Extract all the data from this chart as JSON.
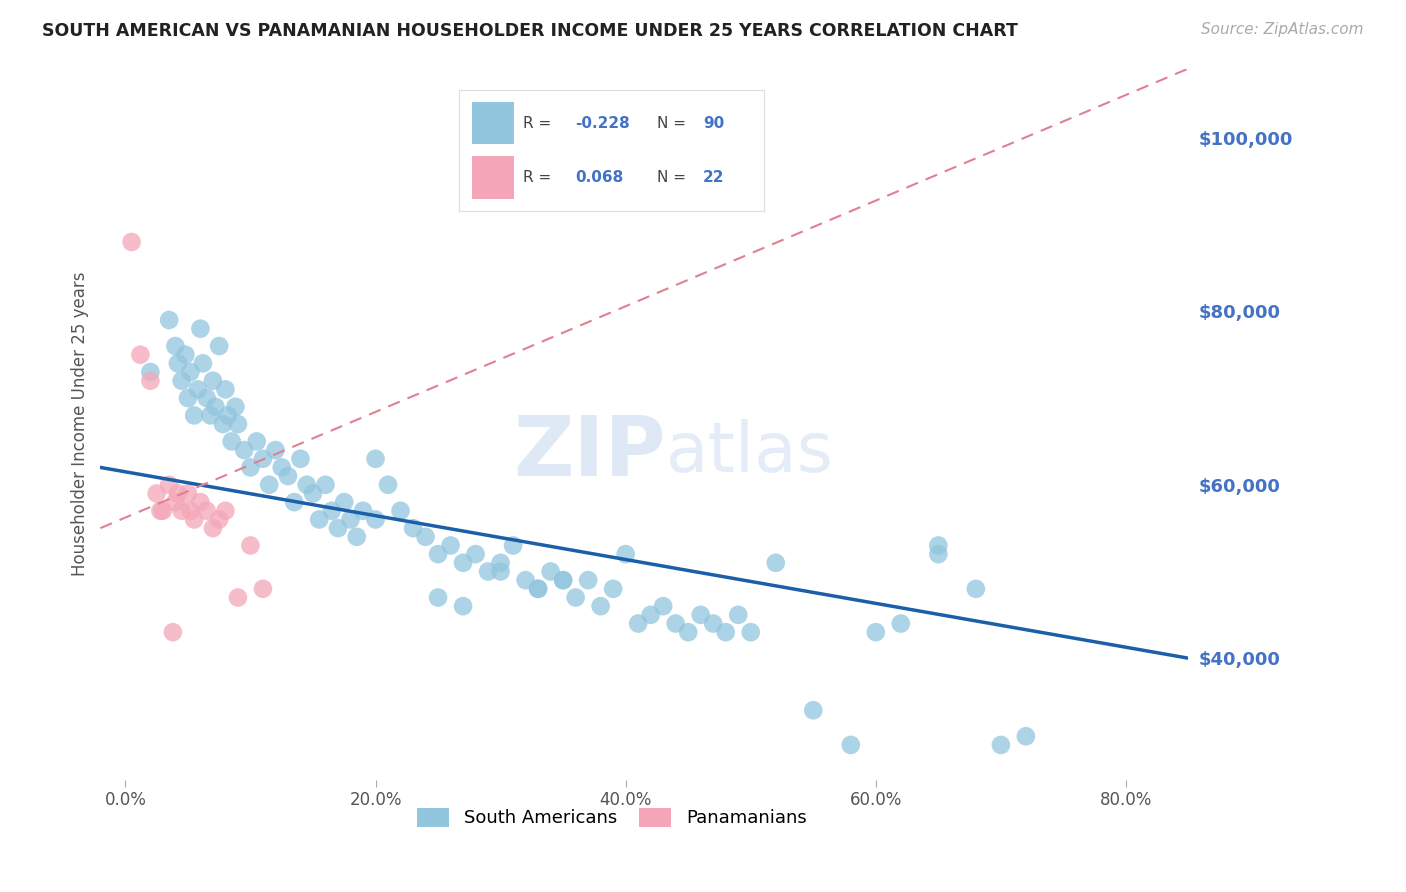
{
  "title": "SOUTH AMERICAN VS PANAMANIAN HOUSEHOLDER INCOME UNDER 25 YEARS CORRELATION CHART",
  "source": "Source: ZipAtlas.com",
  "ylabel": "Householder Income Under 25 years",
  "watermark_zip": "ZIP",
  "watermark_atlas": "atlas",
  "legend_blue_label": "South Americans",
  "legend_pink_label": "Panamanians",
  "blue_color": "#92c5de",
  "pink_color": "#f4a6b8",
  "blue_line_color": "#1a5fa8",
  "pink_line_color": "#e08090",
  "background_color": "#ffffff",
  "grid_color": "#cccccc",
  "ytick_labels": [
    "$40,000",
    "$60,000",
    "$80,000",
    "$100,000"
  ],
  "ytick_values": [
    40000,
    60000,
    80000,
    100000
  ],
  "xtick_labels": [
    "0.0%",
    "20.0%",
    "40.0%",
    "60.0%",
    "80.0%"
  ],
  "xtick_values": [
    0.0,
    20.0,
    40.0,
    60.0,
    80.0
  ],
  "xlim": [
    -2,
    85
  ],
  "ylim": [
    26000,
    108000
  ],
  "blue_x": [
    2.0,
    3.5,
    4.0,
    4.2,
    4.5,
    4.8,
    5.0,
    5.2,
    5.5,
    5.8,
    6.0,
    6.2,
    6.5,
    6.8,
    7.0,
    7.2,
    7.5,
    7.8,
    8.0,
    8.2,
    8.5,
    8.8,
    9.0,
    9.5,
    10.0,
    10.5,
    11.0,
    11.5,
    12.0,
    12.5,
    13.0,
    13.5,
    14.0,
    14.5,
    15.0,
    15.5,
    16.0,
    16.5,
    17.0,
    17.5,
    18.0,
    18.5,
    19.0,
    20.0,
    21.0,
    22.0,
    23.0,
    24.0,
    25.0,
    26.0,
    27.0,
    28.0,
    29.0,
    30.0,
    31.0,
    32.0,
    33.0,
    34.0,
    35.0,
    36.0,
    37.0,
    38.0,
    39.0,
    40.0,
    41.0,
    42.0,
    43.0,
    44.0,
    45.0,
    46.0,
    47.0,
    48.0,
    49.0,
    50.0,
    52.0,
    55.0,
    58.0,
    60.0,
    62.0,
    65.0,
    68.0,
    70.0,
    72.0,
    65.0,
    20.0,
    35.0,
    25.0,
    30.0,
    33.0,
    27.0
  ],
  "blue_y": [
    73000,
    79000,
    76000,
    74000,
    72000,
    75000,
    70000,
    73000,
    68000,
    71000,
    78000,
    74000,
    70000,
    68000,
    72000,
    69000,
    76000,
    67000,
    71000,
    68000,
    65000,
    69000,
    67000,
    64000,
    62000,
    65000,
    63000,
    60000,
    64000,
    62000,
    61000,
    58000,
    63000,
    60000,
    59000,
    56000,
    60000,
    57000,
    55000,
    58000,
    56000,
    54000,
    57000,
    63000,
    60000,
    57000,
    55000,
    54000,
    52000,
    53000,
    51000,
    52000,
    50000,
    51000,
    53000,
    49000,
    48000,
    50000,
    49000,
    47000,
    49000,
    46000,
    48000,
    52000,
    44000,
    45000,
    46000,
    44000,
    43000,
    45000,
    44000,
    43000,
    45000,
    43000,
    51000,
    34000,
    30000,
    43000,
    44000,
    53000,
    48000,
    30000,
    31000,
    52000,
    56000,
    49000,
    47000,
    50000,
    48000,
    46000
  ],
  "pink_x": [
    0.5,
    1.2,
    2.0,
    2.8,
    3.5,
    4.0,
    4.5,
    5.0,
    5.5,
    6.0,
    6.5,
    7.0,
    8.0,
    9.0,
    10.0,
    11.0,
    3.0,
    4.2,
    5.2,
    2.5,
    7.5,
    3.8
  ],
  "pink_y": [
    88000,
    75000,
    72000,
    57000,
    60000,
    58000,
    57000,
    59000,
    56000,
    58000,
    57000,
    55000,
    57000,
    47000,
    53000,
    48000,
    57000,
    59000,
    57000,
    59000,
    56000,
    43000
  ]
}
